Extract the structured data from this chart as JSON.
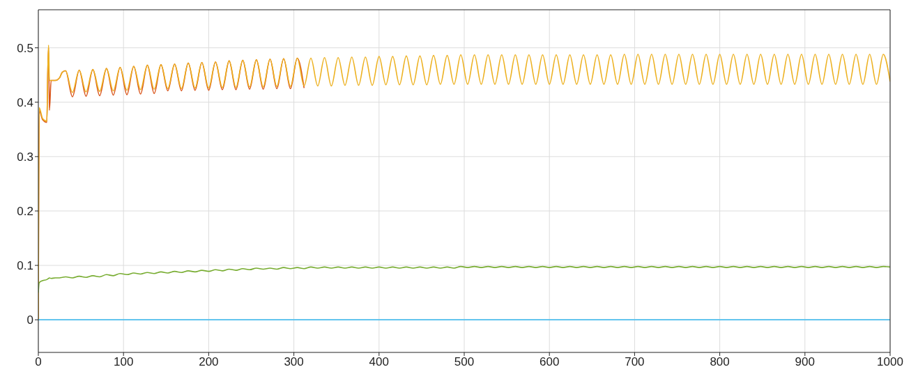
{
  "chart_data": {
    "type": "line",
    "xlim": [
      0,
      1000
    ],
    "xticks": [
      0,
      100,
      200,
      300,
      400,
      500,
      600,
      700,
      800,
      900,
      1000
    ],
    "ylim": [
      -0.06,
      0.57
    ],
    "yticks": [
      0,
      0.1,
      0.2,
      0.3,
      0.4,
      0.5
    ],
    "grid": true,
    "x": [
      0,
      1,
      5,
      10,
      11,
      12,
      13,
      15,
      20,
      25,
      28,
      32,
      40,
      48,
      56,
      64,
      72,
      80,
      88,
      96,
      104,
      112,
      120,
      128,
      136,
      144,
      152,
      160,
      168,
      176,
      184,
      192,
      200,
      208,
      216,
      224,
      232,
      240,
      248,
      256,
      264,
      272,
      280,
      288,
      296,
      304,
      312,
      320,
      328,
      336,
      344,
      352,
      360,
      368,
      376,
      384,
      392,
      400,
      408,
      416,
      424,
      432,
      440,
      448,
      456,
      464,
      472,
      480,
      488,
      496,
      504,
      512,
      520,
      528,
      536,
      544,
      552,
      560,
      568,
      576,
      584,
      592,
      600,
      608,
      616,
      624,
      632,
      640,
      648,
      656,
      664,
      672,
      680,
      688,
      696,
      704,
      712,
      720,
      728,
      736,
      744,
      752,
      760,
      768,
      776,
      784,
      792,
      800,
      808,
      816,
      824,
      832,
      840,
      848,
      856,
      864,
      872,
      880,
      888,
      896,
      904,
      912,
      920,
      928,
      936,
      944,
      952,
      960,
      968,
      976,
      984,
      992,
      1000
    ],
    "series": [
      {
        "color": "#d95319",
        "x": [
          0,
          1,
          5,
          10,
          11,
          12,
          13,
          15,
          20,
          25,
          28,
          32,
          40,
          48,
          56,
          64,
          72,
          80,
          88,
          96,
          104,
          112,
          120,
          128,
          136,
          144,
          152,
          160,
          168,
          176,
          184,
          192,
          200,
          208,
          216,
          224,
          232,
          240,
          248,
          256,
          264,
          272,
          280,
          288,
          296,
          304,
          312
        ],
        "values": [
          0,
          0.385,
          0.368,
          0.363,
          0.45,
          0.5,
          0.385,
          0.44,
          0.44,
          0.445,
          0.455,
          0.458,
          0.41,
          0.459,
          0.411,
          0.46,
          0.412,
          0.462,
          0.413,
          0.464,
          0.414,
          0.466,
          0.415,
          0.468,
          0.416,
          0.469,
          0.421,
          0.47,
          0.421,
          0.472,
          0.422,
          0.473,
          0.422,
          0.474,
          0.423,
          0.476,
          0.423,
          0.477,
          0.424,
          0.478,
          0.424,
          0.479,
          0.425,
          0.48,
          0.425,
          0.481,
          0.426
        ]
      },
      {
        "color": "#edb120",
        "values": [
          0,
          0.39,
          0.37,
          0.365,
          0.45,
          0.505,
          0.44,
          0.44,
          0.44,
          0.445,
          0.455,
          0.458,
          0.418,
          0.459,
          0.419,
          0.46,
          0.42,
          0.462,
          0.421,
          0.464,
          0.422,
          0.466,
          0.423,
          0.468,
          0.424,
          0.469,
          0.425,
          0.47,
          0.425,
          0.472,
          0.426,
          0.473,
          0.426,
          0.474,
          0.427,
          0.476,
          0.427,
          0.477,
          0.428,
          0.478,
          0.428,
          0.479,
          0.429,
          0.48,
          0.429,
          0.481,
          0.43,
          0.481,
          0.43,
          0.482,
          0.43,
          0.482,
          0.431,
          0.483,
          0.431,
          0.483,
          0.431,
          0.484,
          0.432,
          0.484,
          0.432,
          0.485,
          0.432,
          0.485,
          0.432,
          0.486,
          0.433,
          0.486,
          0.433,
          0.487,
          0.433,
          0.487,
          0.433,
          0.487,
          0.433,
          0.487,
          0.433,
          0.487,
          0.433,
          0.487,
          0.433,
          0.487,
          0.433,
          0.487,
          0.433,
          0.487,
          0.433,
          0.487,
          0.433,
          0.487,
          0.433,
          0.487,
          0.433,
          0.488,
          0.433,
          0.488,
          0.433,
          0.488,
          0.433,
          0.488,
          0.433,
          0.488,
          0.433,
          0.488,
          0.433,
          0.488,
          0.433,
          0.488,
          0.433,
          0.488,
          0.433,
          0.488,
          0.433,
          0.488,
          0.433,
          0.488,
          0.433,
          0.488,
          0.433,
          0.488,
          0.433,
          0.488,
          0.433,
          0.488,
          0.433,
          0.488,
          0.433,
          0.488,
          0.433,
          0.488,
          0.433,
          0.488,
          0.438
        ]
      },
      {
        "color": "#77ac30",
        "values": [
          0.05,
          0.068,
          0.072,
          0.074,
          0.075,
          0.076,
          0.077,
          0.076,
          0.077,
          0.077,
          0.078,
          0.079,
          0.077,
          0.08,
          0.078,
          0.081,
          0.079,
          0.083,
          0.081,
          0.085,
          0.083,
          0.086,
          0.084,
          0.087,
          0.085,
          0.088,
          0.086,
          0.089,
          0.087,
          0.09,
          0.088,
          0.091,
          0.089,
          0.092,
          0.09,
          0.093,
          0.091,
          0.094,
          0.092,
          0.095,
          0.093,
          0.095,
          0.093,
          0.096,
          0.094,
          0.096,
          0.094,
          0.097,
          0.095,
          0.097,
          0.095,
          0.097,
          0.095,
          0.097,
          0.095,
          0.097,
          0.095,
          0.097,
          0.095,
          0.097,
          0.095,
          0.097,
          0.095,
          0.097,
          0.095,
          0.097,
          0.095,
          0.097,
          0.095,
          0.098,
          0.096,
          0.098,
          0.096,
          0.098,
          0.096,
          0.098,
          0.096,
          0.098,
          0.096,
          0.098,
          0.096,
          0.098,
          0.096,
          0.098,
          0.096,
          0.098,
          0.096,
          0.098,
          0.096,
          0.098,
          0.096,
          0.098,
          0.096,
          0.098,
          0.096,
          0.098,
          0.096,
          0.098,
          0.096,
          0.098,
          0.096,
          0.098,
          0.096,
          0.098,
          0.096,
          0.098,
          0.096,
          0.098,
          0.096,
          0.098,
          0.096,
          0.098,
          0.096,
          0.098,
          0.096,
          0.098,
          0.096,
          0.098,
          0.096,
          0.098,
          0.096,
          0.098,
          0.096,
          0.098,
          0.096,
          0.098,
          0.096,
          0.098,
          0.096,
          0.098,
          0.096,
          0.098,
          0.097
        ]
      },
      {
        "color": "#4dbeee",
        "x": [
          0,
          1000
        ],
        "values": [
          0,
          0
        ]
      }
    ]
  }
}
